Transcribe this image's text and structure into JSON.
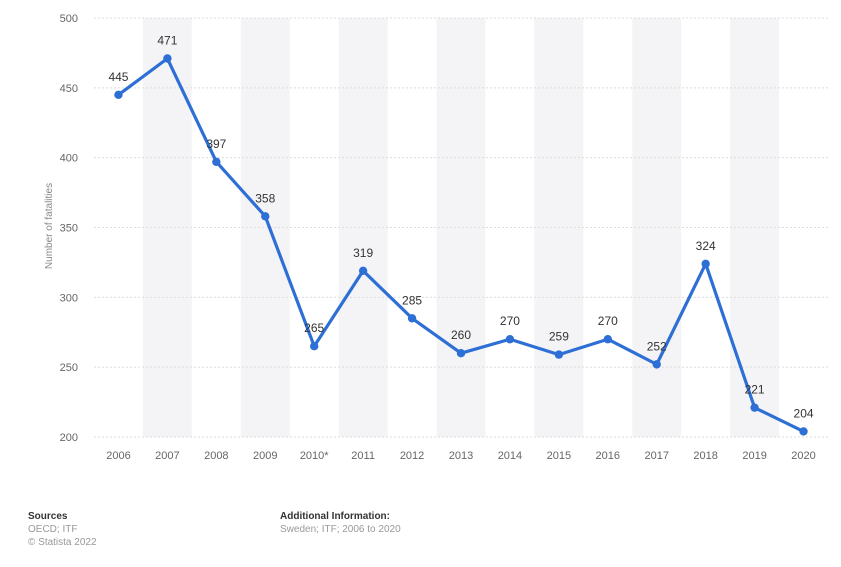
{
  "chart_data": {
    "type": "line",
    "categories": [
      "2006",
      "2007",
      "2008",
      "2009",
      "2010*",
      "2011",
      "2012",
      "2013",
      "2014",
      "2015",
      "2016",
      "2017",
      "2018",
      "2019",
      "2020"
    ],
    "values": [
      445,
      471,
      397,
      358,
      265,
      319,
      285,
      260,
      270,
      259,
      270,
      252,
      324,
      221,
      204
    ],
    "data_labels": [
      "445",
      "471",
      "397",
      "358",
      "265",
      "319",
      "285",
      "260",
      "270",
      "259",
      "270",
      "252",
      "324",
      "221",
      "204"
    ],
    "ylabel": "Number of fatalities",
    "ylim": [
      200,
      500
    ],
    "yticks": [
      "200",
      "250",
      "300",
      "350",
      "400",
      "450",
      "500"
    ],
    "grid": true,
    "line_color": "#2e6fd6",
    "band_color": "#f4f4f6"
  },
  "footer": {
    "sources_title": "Sources",
    "sources_line1": "OECD; ITF",
    "copyright": "© Statista 2022",
    "info_title": "Additional Information:",
    "info_text": "Sweden; ITF; 2006 to 2020"
  }
}
